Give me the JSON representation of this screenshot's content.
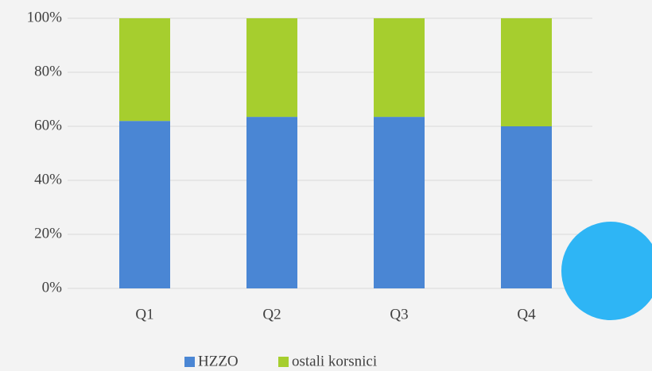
{
  "chart_data": {
    "type": "stacked_bar",
    "categories": [
      "Q1",
      "Q2",
      "Q3",
      "Q4"
    ],
    "series": [
      {
        "name": "HZZO",
        "color": "#4a86d4",
        "values": [
          62,
          63.5,
          63.5,
          60
        ]
      },
      {
        "name": "ostali korsnici",
        "color": "#a6ce2e",
        "values": [
          38,
          36.5,
          36.5,
          40
        ]
      }
    ],
    "ylim": [
      0,
      100
    ],
    "yticks": [
      {
        "value": 0,
        "label": "0%"
      },
      {
        "value": 20,
        "label": "20%"
      },
      {
        "value": 40,
        "label": "40%"
      },
      {
        "value": 60,
        "label": "60%"
      },
      {
        "value": 80,
        "label": "80%"
      },
      {
        "value": 100,
        "label": "100%"
      }
    ],
    "grid": true,
    "legend": "bottom"
  }
}
